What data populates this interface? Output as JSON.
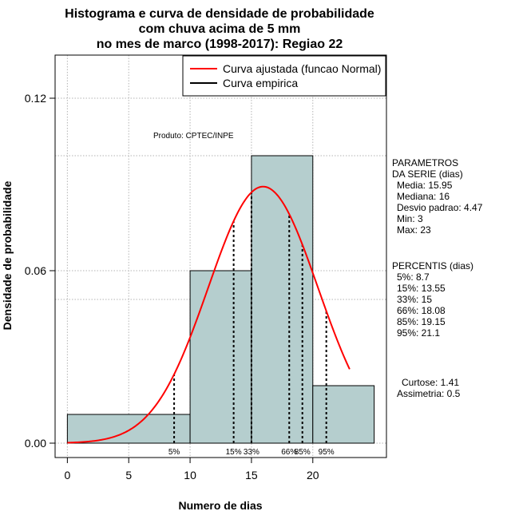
{
  "chart_data": {
    "type": "histogram",
    "title_lines": [
      "Histograma e curva de densidade de probabilidade",
      "com chuva acima de 5 mm",
      "no mes de marco (1998-2017): Regiao 22"
    ],
    "xlabel": "Numero de dias",
    "ylabel": "Densidade de probabilidade",
    "xlim": [
      -1,
      26
    ],
    "ylim": [
      -0.005,
      0.135
    ],
    "x_ticks": [
      0,
      5,
      10,
      15,
      20
    ],
    "y_ticks": [
      0.0,
      0.06,
      0.12
    ],
    "y_tick_labels": [
      "0.00",
      "0.06",
      "0.12"
    ],
    "grid": true,
    "bins": [
      {
        "start": 0,
        "end": 10,
        "density": 0.01
      },
      {
        "start": 10,
        "end": 15,
        "density": 0.06
      },
      {
        "start": 15,
        "end": 20,
        "density": 0.1
      },
      {
        "start": 20,
        "end": 25,
        "density": 0.02
      }
    ],
    "fitted_curve": {
      "name": "Curva ajustada (funcao Normal)",
      "distribution": "normal",
      "mean": 15.95,
      "sd": 4.47,
      "x_range": [
        0,
        23
      ],
      "color": "#ff0000"
    },
    "empirical_curve": {
      "name": "Curva empirica",
      "color": "#000000"
    },
    "legend": [
      "Curva ajustada (funcao Normal)",
      "Curva empirica"
    ],
    "percentiles": [
      {
        "label": "5%",
        "value": 8.7
      },
      {
        "label": "15%",
        "value": 13.55
      },
      {
        "label": "33%",
        "value": 15
      },
      {
        "label": "66%",
        "value": 18.08
      },
      {
        "label": "85%",
        "value": 19.15
      },
      {
        "label": "95%",
        "value": 21.1
      }
    ],
    "annotations": {
      "producer": "Produto: CPTEC/INPE",
      "params_header": [
        "PARAMETROS",
        "DA SERIE (dias)"
      ],
      "params": [
        "Media: 15.95",
        "Mediana: 16",
        "Desvio padrao: 4.47",
        "Min: 3",
        "Max: 23"
      ],
      "percentis_header": "PERCENTIS (dias)",
      "percentis": [
        "5%: 8.7",
        "15%: 13.55",
        "33%: 15",
        "66%: 18.08",
        "85%: 19.15",
        "95%: 21.1"
      ],
      "shape": [
        "Curtose: 1.41",
        "Assimetria: 0.5"
      ]
    },
    "bar_fill": "#b5cece",
    "grid_color": "#b3b3b3"
  }
}
